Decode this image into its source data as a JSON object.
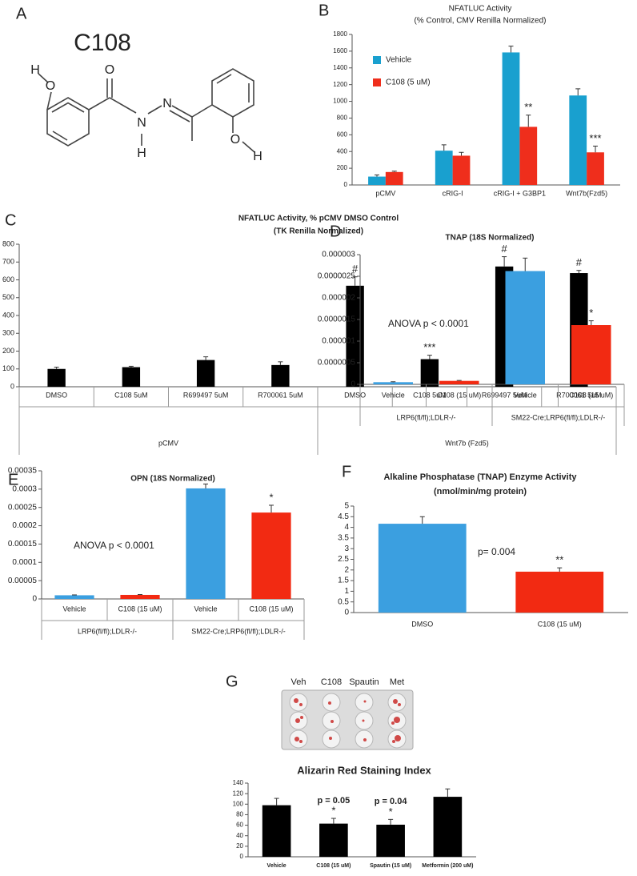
{
  "structure": {
    "panel": "A",
    "title": "C108",
    "atoms": [
      "H",
      "O",
      "O",
      "N",
      "H",
      "N",
      "O",
      "H"
    ]
  },
  "plate_panel": {
    "panel": "G",
    "labels": [
      "Veh",
      "C108",
      "Spautin",
      "Met"
    ]
  },
  "chart_data": [
    {
      "type": "bar",
      "panel": "B",
      "title": "NFATLUC Activity",
      "subtitle": "(% Control, CMV Renilla Normalized)",
      "categories": [
        "pCMV",
        "cRIG-I",
        "cRIG-I + G3BP1",
        "Wnt7b(Fzd5)"
      ],
      "series": [
        {
          "name": "Vehicle",
          "color": "#19a0cf",
          "values": [
            100,
            410,
            1585,
            1070
          ],
          "errors": [
            20,
            70,
            75,
            80
          ],
          "annotations": [
            null,
            null,
            null,
            null
          ]
        },
        {
          "name": "C108 (5 uM)",
          "color": "#ef2e1c",
          "values": [
            155,
            350,
            695,
            390
          ],
          "errors": [
            10,
            40,
            140,
            75
          ],
          "annotations": [
            null,
            null,
            "**",
            "***"
          ]
        }
      ],
      "ylim": [
        0,
        1800
      ],
      "yticks": [
        0,
        200,
        400,
        600,
        800,
        1000,
        1200,
        1400,
        1600,
        1800
      ],
      "legend": "upper left"
    },
    {
      "type": "bar",
      "panel": "C",
      "title": "NFATLUC Activity, % pCMV DMSO Control",
      "subtitle": "(TK Renilla Normalized)",
      "categories": [
        "DMSO",
        "C108 5uM",
        "R699497 5uM",
        "R700061 5uM",
        "DMSO",
        "C108 5uM",
        "R699497 5uM",
        "R700061 5uM"
      ],
      "groups": [
        "pCMV",
        "Wnt7b (Fzd5)"
      ],
      "values": [
        100,
        110,
        150,
        122,
        567,
        155,
        675,
        638
      ],
      "errors": [
        10,
        5,
        18,
        18,
        50,
        22,
        55,
        15
      ],
      "annotations": [
        null,
        null,
        null,
        null,
        "#",
        "***",
        "#",
        "#"
      ],
      "color": "#000000",
      "ylim": [
        0,
        800
      ],
      "yticks": [
        0,
        100,
        200,
        300,
        400,
        500,
        600,
        700,
        800
      ]
    },
    {
      "type": "bar",
      "panel": "D",
      "title": "TNAP (18S Normalized)",
      "note": "ANOVA p < 0.0001",
      "categories": [
        "Vehicle",
        "C108 (15 uM)",
        "Vehicle",
        "C108 (15 uM)"
      ],
      "groups": [
        "LRP6(fl/fl);LDLR-/-",
        "SM22-Cre;LRP6(fl/fl);LDLR-/-"
      ],
      "values": [
        5e-08,
        8e-08,
        2.62e-06,
        1.37e-06
      ],
      "errors": [
        1e-08,
        1e-08,
        3e-07,
        1e-07
      ],
      "annotations": [
        null,
        null,
        null,
        "*"
      ],
      "colors": [
        "#3b9fe0",
        "#f22a12",
        "#3b9fe0",
        "#f22a12"
      ],
      "ylim": [
        0,
        3e-06
      ],
      "yticks": [
        {
          "value": 0,
          "label": "0"
        },
        {
          "value": 5e-07,
          "label": "0.0000005"
        },
        {
          "value": 1e-06,
          "label": "0.000001"
        },
        {
          "value": 1.5e-06,
          "label": "0.0000015"
        },
        {
          "value": 2e-06,
          "label": "0.000002"
        },
        {
          "value": 2.5e-06,
          "label": "0.0000025"
        },
        {
          "value": 3e-06,
          "label": "0.000003"
        }
      ]
    },
    {
      "type": "bar",
      "panel": "E",
      "title": "OPN (18S Normalized)",
      "note": "ANOVA p < 0.0001",
      "categories": [
        "Vehicle",
        "C108 (15 uM)",
        "Vehicle",
        "C108 (15 uM)"
      ],
      "groups": [
        "LRP6(fl/fl);LDLR-/-",
        "SM22-Cre;LRP6(fl/fl);LDLR-/-"
      ],
      "values": [
        1e-05,
        1.1e-05,
        0.000302,
        0.000236
      ],
      "errors": [
        1e-06,
        1e-06,
        1.2e-05,
        2e-05
      ],
      "annotations": [
        null,
        null,
        null,
        "*"
      ],
      "colors": [
        "#3b9fe0",
        "#f22a12",
        "#3b9fe0",
        "#f22a12"
      ],
      "ylim": [
        0,
        0.00035
      ],
      "yticks": [
        {
          "value": 0,
          "label": "0"
        },
        {
          "value": 5e-05,
          "label": "0.00005"
        },
        {
          "value": 0.0001,
          "label": "0.0001"
        },
        {
          "value": 0.00015,
          "label": "0.00015"
        },
        {
          "value": 0.0002,
          "label": "0.0002"
        },
        {
          "value": 0.00025,
          "label": "0.00025"
        },
        {
          "value": 0.0003,
          "label": "0.0003"
        },
        {
          "value": 0.00035,
          "label": "0.00035"
        }
      ]
    },
    {
      "type": "bar",
      "panel": "F",
      "title": "Alkaline Phosphatase (TNAP) Enzyme Activity",
      "subtitle": "(nmol/min/mg protein)",
      "note": "p= 0.004",
      "categories": [
        "DMSO",
        "C108 (15 uM)"
      ],
      "values": [
        4.17,
        1.92
      ],
      "errors": [
        0.33,
        0.18
      ],
      "annotations": [
        null,
        "**"
      ],
      "colors": [
        "#3b9fe0",
        "#f22a12"
      ],
      "ylim": [
        0,
        5
      ],
      "yticks": [
        0,
        0.5,
        1,
        1.5,
        2,
        2.5,
        3,
        3.5,
        4,
        4.5,
        5
      ]
    },
    {
      "type": "bar",
      "title": "Alizarin Red Staining Index",
      "categories": [
        "Vehicle",
        "C108 (15 uM)",
        "Spautin (15 uM)",
        "Metformin (200 uM)"
      ],
      "values": [
        98,
        63,
        61,
        114
      ],
      "errors": [
        13,
        10,
        10,
        15
      ],
      "annotations": [
        null,
        "*",
        "*",
        null
      ],
      "p_labels": [
        null,
        "p = 0.05",
        "p = 0.04",
        null
      ],
      "color": "#000000",
      "ylim": [
        0,
        140
      ],
      "yticks": [
        0,
        20,
        40,
        60,
        80,
        100,
        120,
        140
      ]
    }
  ]
}
